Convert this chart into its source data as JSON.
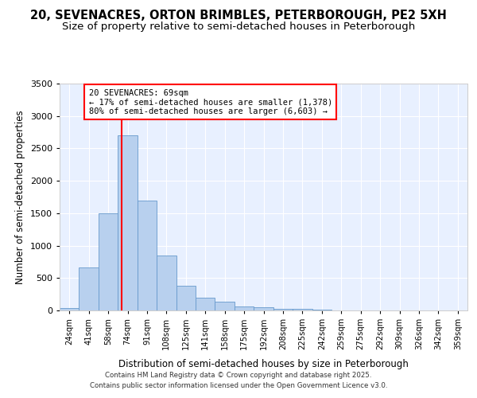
{
  "title_line1": "20, SEVENACRES, ORTON BRIMBLES, PETERBOROUGH, PE2 5XH",
  "title_line2": "Size of property relative to semi-detached houses in Peterborough",
  "xlabel": "Distribution of semi-detached houses by size in Peterborough",
  "ylabel": "Number of semi-detached properties",
  "categories": [
    "24sqm",
    "41sqm",
    "58sqm",
    "74sqm",
    "91sqm",
    "108sqm",
    "125sqm",
    "141sqm",
    "158sqm",
    "175sqm",
    "192sqm",
    "208sqm",
    "225sqm",
    "242sqm",
    "259sqm",
    "275sqm",
    "292sqm",
    "309sqm",
    "326sqm",
    "342sqm",
    "359sqm"
  ],
  "values": [
    40,
    660,
    1500,
    2700,
    1700,
    850,
    380,
    200,
    140,
    65,
    55,
    30,
    20,
    8,
    5,
    3,
    2,
    1,
    0,
    0,
    0
  ],
  "bar_color": "#b8d0ee",
  "bar_edgecolor": "#6699cc",
  "vline_x_idx": 2.85,
  "vline_color": "red",
  "annotation_text": "20 SEVENACRES: 69sqm\n← 17% of semi-detached houses are smaller (1,378)\n80% of semi-detached houses are larger (6,603) →",
  "annotation_box_edgecolor": "red",
  "annotation_box_facecolor": "white",
  "ylim": [
    0,
    3500
  ],
  "yticks": [
    0,
    500,
    1000,
    1500,
    2000,
    2500,
    3000,
    3500
  ],
  "footer_line1": "Contains HM Land Registry data © Crown copyright and database right 2025.",
  "footer_line2": "Contains public sector information licensed under the Open Government Licence v3.0.",
  "background_color": "#ffffff",
  "plot_background": "#e8f0ff",
  "title_fontsize": 10.5,
  "subtitle_fontsize": 9.5,
  "grid_color": "#ffffff"
}
